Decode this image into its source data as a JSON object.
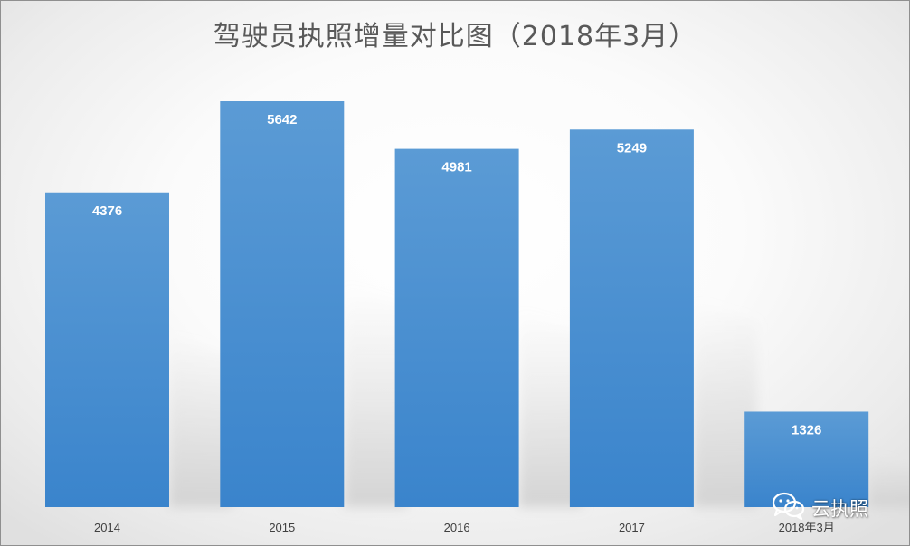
{
  "chart_data": {
    "type": "bar",
    "title": "驾驶员执照增量对比图（2018年3月）",
    "categories": [
      "2014",
      "2015",
      "2016",
      "2017",
      "2018年3月"
    ],
    "values": [
      4376,
      5642,
      4981,
      5249,
      1326
    ],
    "data_labels": [
      "4376",
      "5642",
      "4981",
      "5249",
      "1326"
    ],
    "xlabel": "",
    "ylabel": "",
    "ylim": [
      0,
      5642
    ],
    "grid": false,
    "legend": "none",
    "bar_color_top": "#5b9bd5",
    "bar_color_bottom": "#3a84cc"
  },
  "watermark": {
    "text": "云执照",
    "icon": "wechat-icon"
  }
}
